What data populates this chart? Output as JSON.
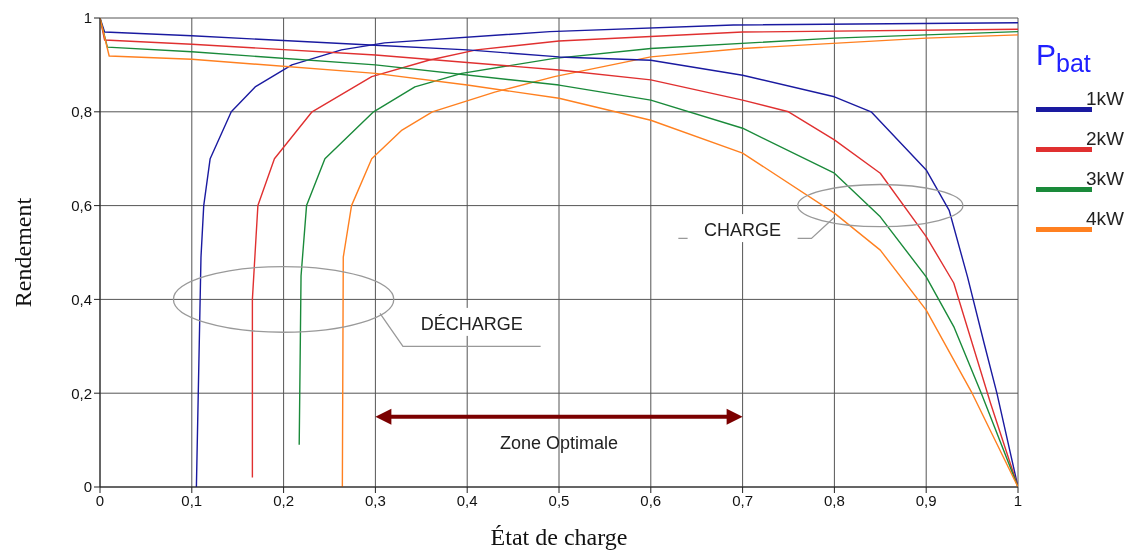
{
  "chart_data": {
    "type": "line",
    "xlabel": "État de charge",
    "ylabel": "Rendement",
    "legend_title": "P$_{bat}$",
    "legend": "right",
    "grid": true,
    "marker": "none",
    "line_style": "solid",
    "xlim": [
      0,
      1
    ],
    "ylim": [
      0,
      1
    ],
    "xticks": [
      0,
      {
        "value": 0.1,
        "label": "0,1"
      },
      {
        "value": 0.2,
        "label": "0,2"
      },
      {
        "value": 0.3,
        "label": "0,3"
      },
      {
        "value": 0.4,
        "label": "0,4"
      },
      {
        "value": 0.5,
        "label": "0,5"
      },
      {
        "value": 0.6,
        "label": "0,6"
      },
      {
        "value": 0.7,
        "label": "0,7"
      },
      {
        "value": 0.8,
        "label": "0,8"
      },
      {
        "value": 0.9,
        "label": "0,9"
      },
      1
    ],
    "yticks": [
      0,
      {
        "value": 0.2,
        "label": "0,2"
      },
      {
        "value": 0.4,
        "label": "0,4"
      },
      {
        "value": 0.6,
        "label": "0,6"
      },
      {
        "value": 0.8,
        "label": "0,8"
      },
      1
    ],
    "series": [
      {
        "name": "1kW",
        "color": "#1a1aa0",
        "x": [
          0.105,
          0.11,
          0.113,
          0.12,
          0.143,
          0.169,
          0.209,
          0.263,
          0.31,
          0.49,
          0.69,
          1
        ],
        "values": [
          0,
          0.49,
          0.6,
          0.7,
          0.8,
          0.853,
          0.9,
          0.932,
          0.947,
          0.971,
          0.985,
          0.99
        ]
      },
      {
        "name": "2kW",
        "color": "#e03030",
        "x": [
          0.166,
          0.166,
          0.17,
          0.172,
          0.19,
          0.231,
          0.296,
          0.358,
          0.41,
          0.5,
          0.7,
          1
        ],
        "values": [
          0.02,
          0.4,
          0.534,
          0.6,
          0.7,
          0.8,
          0.875,
          0.91,
          0.932,
          0.951,
          0.97,
          0.976
        ]
      },
      {
        "name": "3kW",
        "color": "#1a8a3a",
        "x": [
          0.217,
          0.219,
          0.225,
          0.245,
          0.298,
          0.343,
          0.394,
          0.495,
          0.6,
          0.8,
          1
        ],
        "values": [
          0.09,
          0.45,
          0.6,
          0.7,
          0.8,
          0.853,
          0.882,
          0.914,
          0.935,
          0.957,
          0.971
        ]
      },
      {
        "name": "4kW",
        "color": "#ff8020",
        "x": [
          0.264,
          0.265,
          0.274,
          0.296,
          0.329,
          0.362,
          0.43,
          0.495,
          0.6,
          0.7,
          0.9,
          1
        ],
        "values": [
          0,
          0.49,
          0.6,
          0.7,
          0.761,
          0.8,
          0.842,
          0.875,
          0.917,
          0.935,
          0.957,
          0.964
        ]
      },
      {
        "color": "#1a1aa0",
        "x": [
          0,
          0.005,
          0.1,
          0.3,
          0.4,
          0.5,
          0.6,
          0.7,
          0.8,
          0.84,
          0.9,
          0.925,
          0.945,
          0.963,
          0.977,
          1
        ],
        "values": [
          1,
          0.97,
          0.962,
          0.942,
          0.932,
          0.917,
          0.91,
          0.878,
          0.832,
          0.8,
          0.676,
          0.59,
          0.448,
          0.307,
          0.2,
          0
        ]
      },
      {
        "color": "#e03030",
        "x": [
          0,
          0.005,
          0.1,
          0.3,
          0.5,
          0.6,
          0.7,
          0.75,
          0.8,
          0.85,
          0.9,
          0.93,
          0.95,
          0.97,
          1
        ],
        "values": [
          1,
          0.953,
          0.944,
          0.921,
          0.889,
          0.868,
          0.825,
          0.8,
          0.74,
          0.669,
          0.534,
          0.435,
          0.307,
          0.179,
          0
        ]
      },
      {
        "color": "#1a8a3a",
        "x": [
          0,
          0.008,
          0.1,
          0.3,
          0.5,
          0.6,
          0.7,
          0.8,
          0.85,
          0.9,
          0.93,
          0.96,
          1
        ],
        "values": [
          1,
          0.938,
          0.928,
          0.9,
          0.857,
          0.825,
          0.765,
          0.669,
          0.576,
          0.448,
          0.342,
          0.2,
          0
        ]
      },
      {
        "color": "#ff8020",
        "x": [
          0,
          0.01,
          0.1,
          0.3,
          0.4,
          0.5,
          0.6,
          0.7,
          0.8,
          0.85,
          0.9,
          0.95,
          1
        ],
        "values": [
          1,
          0.919,
          0.912,
          0.882,
          0.857,
          0.829,
          0.782,
          0.712,
          0.584,
          0.505,
          0.377,
          0.2,
          0
        ]
      }
    ],
    "annotations": [
      "DÉCHARGE",
      "CHARGE",
      "Zone Optimale"
    ]
  }
}
